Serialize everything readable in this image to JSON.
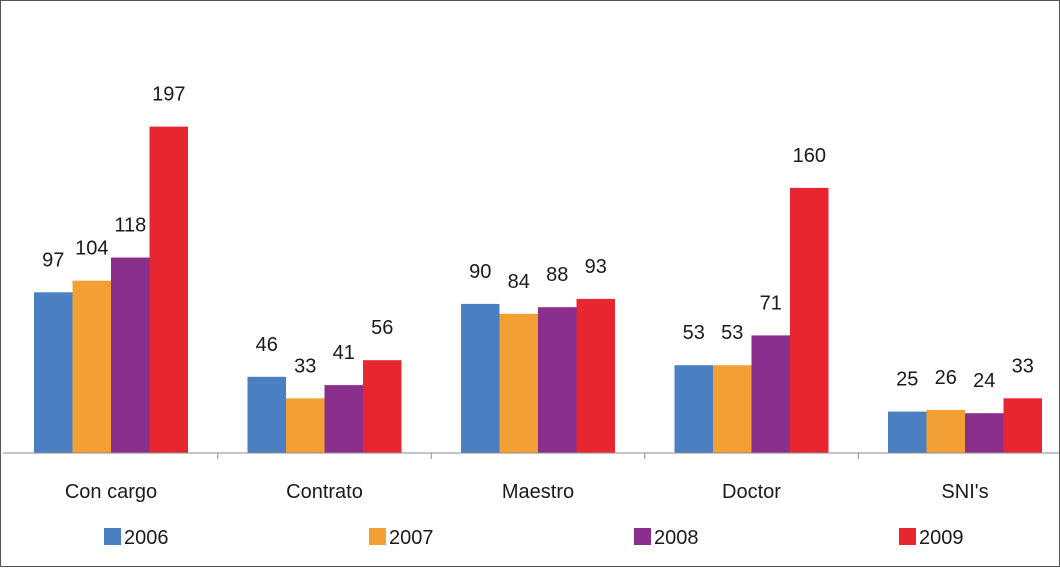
{
  "chart_data": {
    "type": "bar",
    "categories": [
      "Con cargo",
      "Contrato",
      "Maestro",
      "Doctor",
      "SNI's"
    ],
    "series": [
      {
        "name": "2006",
        "color": "#4a7fc1",
        "values": [
          97,
          46,
          90,
          53,
          25
        ]
      },
      {
        "name": "2007",
        "color": "#f2a033",
        "values": [
          104,
          33,
          84,
          53,
          26
        ]
      },
      {
        "name": "2008",
        "color": "#8b2f8c",
        "values": [
          118,
          41,
          88,
          71,
          24
        ]
      },
      {
        "name": "2009",
        "color": "#e8262f",
        "values": [
          197,
          56,
          93,
          160,
          33
        ]
      }
    ],
    "ylim": [
      0,
      270
    ],
    "grid": false,
    "legend_position": "bottom",
    "data_labels": true
  }
}
